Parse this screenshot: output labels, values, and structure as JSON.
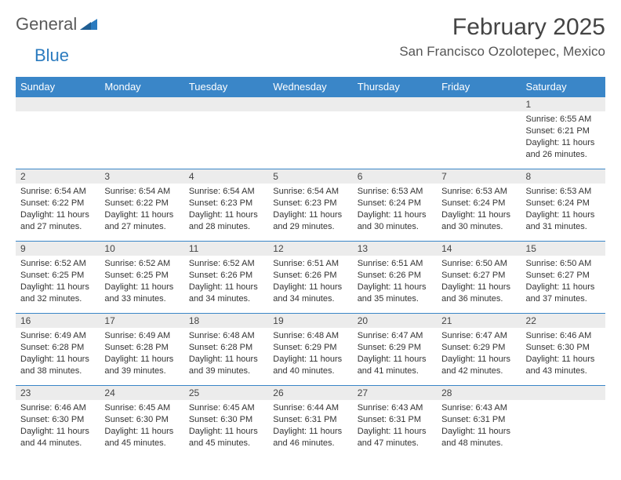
{
  "logo": {
    "text1": "General",
    "text2": "Blue"
  },
  "title": "February 2025",
  "location": "San Francisco Ozolotepec, Mexico",
  "colors": {
    "header_bg": "#3a86c8",
    "header_text": "#ffffff",
    "daynum_bg": "#ececec",
    "row_border": "#3a86c8",
    "logo_gray": "#5a5a5a",
    "logo_blue": "#2b7bbf"
  },
  "day_headers": [
    "Sunday",
    "Monday",
    "Tuesday",
    "Wednesday",
    "Thursday",
    "Friday",
    "Saturday"
  ],
  "weeks": [
    [
      {
        "n": "",
        "empty": true
      },
      {
        "n": "",
        "empty": true
      },
      {
        "n": "",
        "empty": true
      },
      {
        "n": "",
        "empty": true
      },
      {
        "n": "",
        "empty": true
      },
      {
        "n": "",
        "empty": true
      },
      {
        "n": "1",
        "sunrise": "Sunrise: 6:55 AM",
        "sunset": "Sunset: 6:21 PM",
        "daylight": "Daylight: 11 hours and 26 minutes."
      }
    ],
    [
      {
        "n": "2",
        "sunrise": "Sunrise: 6:54 AM",
        "sunset": "Sunset: 6:22 PM",
        "daylight": "Daylight: 11 hours and 27 minutes."
      },
      {
        "n": "3",
        "sunrise": "Sunrise: 6:54 AM",
        "sunset": "Sunset: 6:22 PM",
        "daylight": "Daylight: 11 hours and 27 minutes."
      },
      {
        "n": "4",
        "sunrise": "Sunrise: 6:54 AM",
        "sunset": "Sunset: 6:23 PM",
        "daylight": "Daylight: 11 hours and 28 minutes."
      },
      {
        "n": "5",
        "sunrise": "Sunrise: 6:54 AM",
        "sunset": "Sunset: 6:23 PM",
        "daylight": "Daylight: 11 hours and 29 minutes."
      },
      {
        "n": "6",
        "sunrise": "Sunrise: 6:53 AM",
        "sunset": "Sunset: 6:24 PM",
        "daylight": "Daylight: 11 hours and 30 minutes."
      },
      {
        "n": "7",
        "sunrise": "Sunrise: 6:53 AM",
        "sunset": "Sunset: 6:24 PM",
        "daylight": "Daylight: 11 hours and 30 minutes."
      },
      {
        "n": "8",
        "sunrise": "Sunrise: 6:53 AM",
        "sunset": "Sunset: 6:24 PM",
        "daylight": "Daylight: 11 hours and 31 minutes."
      }
    ],
    [
      {
        "n": "9",
        "sunrise": "Sunrise: 6:52 AM",
        "sunset": "Sunset: 6:25 PM",
        "daylight": "Daylight: 11 hours and 32 minutes."
      },
      {
        "n": "10",
        "sunrise": "Sunrise: 6:52 AM",
        "sunset": "Sunset: 6:25 PM",
        "daylight": "Daylight: 11 hours and 33 minutes."
      },
      {
        "n": "11",
        "sunrise": "Sunrise: 6:52 AM",
        "sunset": "Sunset: 6:26 PM",
        "daylight": "Daylight: 11 hours and 34 minutes."
      },
      {
        "n": "12",
        "sunrise": "Sunrise: 6:51 AM",
        "sunset": "Sunset: 6:26 PM",
        "daylight": "Daylight: 11 hours and 34 minutes."
      },
      {
        "n": "13",
        "sunrise": "Sunrise: 6:51 AM",
        "sunset": "Sunset: 6:26 PM",
        "daylight": "Daylight: 11 hours and 35 minutes."
      },
      {
        "n": "14",
        "sunrise": "Sunrise: 6:50 AM",
        "sunset": "Sunset: 6:27 PM",
        "daylight": "Daylight: 11 hours and 36 minutes."
      },
      {
        "n": "15",
        "sunrise": "Sunrise: 6:50 AM",
        "sunset": "Sunset: 6:27 PM",
        "daylight": "Daylight: 11 hours and 37 minutes."
      }
    ],
    [
      {
        "n": "16",
        "sunrise": "Sunrise: 6:49 AM",
        "sunset": "Sunset: 6:28 PM",
        "daylight": "Daylight: 11 hours and 38 minutes."
      },
      {
        "n": "17",
        "sunrise": "Sunrise: 6:49 AM",
        "sunset": "Sunset: 6:28 PM",
        "daylight": "Daylight: 11 hours and 39 minutes."
      },
      {
        "n": "18",
        "sunrise": "Sunrise: 6:48 AM",
        "sunset": "Sunset: 6:28 PM",
        "daylight": "Daylight: 11 hours and 39 minutes."
      },
      {
        "n": "19",
        "sunrise": "Sunrise: 6:48 AM",
        "sunset": "Sunset: 6:29 PM",
        "daylight": "Daylight: 11 hours and 40 minutes."
      },
      {
        "n": "20",
        "sunrise": "Sunrise: 6:47 AM",
        "sunset": "Sunset: 6:29 PM",
        "daylight": "Daylight: 11 hours and 41 minutes."
      },
      {
        "n": "21",
        "sunrise": "Sunrise: 6:47 AM",
        "sunset": "Sunset: 6:29 PM",
        "daylight": "Daylight: 11 hours and 42 minutes."
      },
      {
        "n": "22",
        "sunrise": "Sunrise: 6:46 AM",
        "sunset": "Sunset: 6:30 PM",
        "daylight": "Daylight: 11 hours and 43 minutes."
      }
    ],
    [
      {
        "n": "23",
        "sunrise": "Sunrise: 6:46 AM",
        "sunset": "Sunset: 6:30 PM",
        "daylight": "Daylight: 11 hours and 44 minutes."
      },
      {
        "n": "24",
        "sunrise": "Sunrise: 6:45 AM",
        "sunset": "Sunset: 6:30 PM",
        "daylight": "Daylight: 11 hours and 45 minutes."
      },
      {
        "n": "25",
        "sunrise": "Sunrise: 6:45 AM",
        "sunset": "Sunset: 6:30 PM",
        "daylight": "Daylight: 11 hours and 45 minutes."
      },
      {
        "n": "26",
        "sunrise": "Sunrise: 6:44 AM",
        "sunset": "Sunset: 6:31 PM",
        "daylight": "Daylight: 11 hours and 46 minutes."
      },
      {
        "n": "27",
        "sunrise": "Sunrise: 6:43 AM",
        "sunset": "Sunset: 6:31 PM",
        "daylight": "Daylight: 11 hours and 47 minutes."
      },
      {
        "n": "28",
        "sunrise": "Sunrise: 6:43 AM",
        "sunset": "Sunset: 6:31 PM",
        "daylight": "Daylight: 11 hours and 48 minutes."
      },
      {
        "n": "",
        "empty": true
      }
    ]
  ]
}
